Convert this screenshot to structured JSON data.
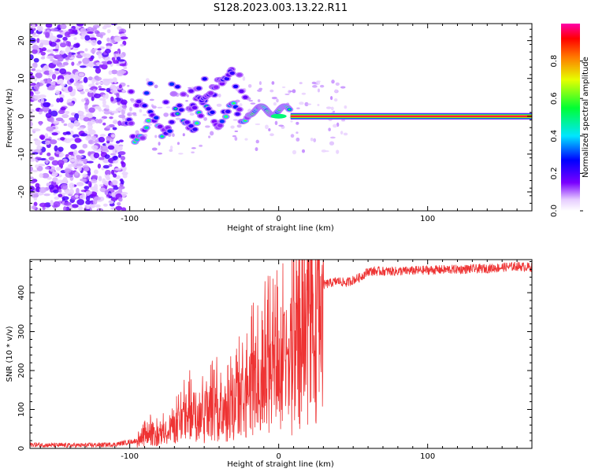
{
  "title": "S128.2023.003.13.22.R11",
  "chart_data": [
    {
      "type": "heatmap",
      "xlabel": "Height of straight line (km)",
      "ylabel": "Frequency (Hz)",
      "xlim": [
        -167,
        170
      ],
      "ylim": [
        -25,
        24.5
      ],
      "x_ticks": [
        -100,
        0,
        100
      ],
      "y_ticks": [
        -20,
        -10,
        0,
        10,
        20
      ],
      "colorbar": {
        "label": "Normalized spectral amplitude",
        "range": [
          0,
          1
        ],
        "ticks": [
          "0.0",
          "0.2",
          "0.4",
          "0.6",
          "0.8"
        ]
      },
      "features": [
        {
          "x_range": [
            -167,
            -105
          ],
          "description_value": "broadband noise, low amplitude (~0.1-0.3)"
        },
        {
          "x_range": [
            -105,
            -15
          ],
          "y_range": [
            -10,
            15
          ],
          "amplitude_range": [
            0.2,
            0.5
          ]
        },
        {
          "x_range": [
            -15,
            5
          ],
          "y_center": 1.5,
          "amplitude": 0.6
        },
        {
          "x_range": [
            5,
            170
          ],
          "y_center": 0,
          "amplitude": 1.0
        }
      ]
    },
    {
      "type": "line",
      "xlabel": "Height of straight line (km)",
      "ylabel": "SNR (10 * v/v)",
      "xlim": [
        -167,
        170
      ],
      "ylim": [
        0,
        485
      ],
      "x_ticks": [
        -100,
        0,
        100
      ],
      "y_ticks": [
        0,
        100,
        200,
        300,
        400
      ],
      "series": [
        {
          "color": "#ee3333",
          "x": [
            -167,
            -150,
            -130,
            -110,
            -95,
            -88,
            -85,
            -80,
            -70,
            -60,
            -50,
            -40,
            -30,
            -20,
            -15,
            -10,
            -5,
            0,
            5,
            10,
            15,
            20,
            25,
            30,
            40,
            45,
            55,
            60,
            80,
            100,
            120,
            140,
            160,
            170
          ],
          "y": [
            10,
            8,
            8,
            10,
            20,
            60,
            40,
            45,
            70,
            110,
            120,
            130,
            150,
            180,
            230,
            240,
            260,
            270,
            280,
            300,
            340,
            380,
            395,
            420,
            430,
            425,
            440,
            455,
            455,
            458,
            460,
            462,
            468,
            465
          ]
        }
      ]
    }
  ]
}
